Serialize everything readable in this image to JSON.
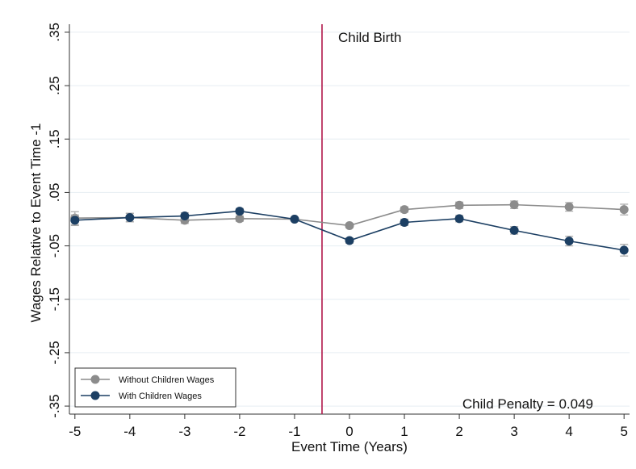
{
  "chart_data": {
    "type": "line",
    "title": "",
    "xlabel": "Event Time (Years)",
    "ylabel": "Wages Relative to Event Time -1",
    "x": [
      -5,
      -4,
      -3,
      -2,
      -1,
      0,
      1,
      2,
      3,
      4,
      5
    ],
    "x_tick_labels": [
      "-5",
      "-4",
      "-3",
      "-2",
      "-1",
      "0",
      "1",
      "2",
      "3",
      "4",
      "5"
    ],
    "y_ticks": [
      0.35,
      0.25,
      0.15,
      0.05,
      -0.05,
      -0.15,
      -0.25,
      -0.35
    ],
    "y_tick_labels": [
      ".35",
      ".25",
      ".15",
      ".05",
      "-.05",
      "-.15",
      "-.25",
      "-.35"
    ],
    "xlim": [
      -5.1,
      5.1
    ],
    "ylim": [
      -0.365,
      0.365
    ],
    "grid": true,
    "legend_position": "bottom-left",
    "series": [
      {
        "name": "Without Children Wages",
        "color": "#8c8c8c",
        "values": [
          0.002,
          0.003,
          -0.002,
          0.001,
          0.0,
          -0.012,
          0.018,
          0.026,
          0.027,
          0.023,
          0.018
        ],
        "ci_half_width": [
          0.012,
          0.008,
          0.006,
          0.005,
          0.0,
          0.004,
          0.005,
          0.006,
          0.007,
          0.008,
          0.01
        ]
      },
      {
        "name": "With Children Wages",
        "color": "#1c3f63",
        "values": [
          -0.002,
          0.003,
          0.006,
          0.015,
          0.0,
          -0.04,
          -0.006,
          0.001,
          -0.021,
          -0.041,
          -0.058
        ],
        "ci_half_width": [
          0.01,
          0.008,
          0.006,
          0.005,
          0.0,
          0.005,
          0.006,
          0.006,
          0.007,
          0.009,
          0.011
        ]
      }
    ],
    "vline": {
      "x": -0.5,
      "label": "Child Birth",
      "color": "#b0174a"
    },
    "annotation": "Child Penalty = 0.049"
  }
}
